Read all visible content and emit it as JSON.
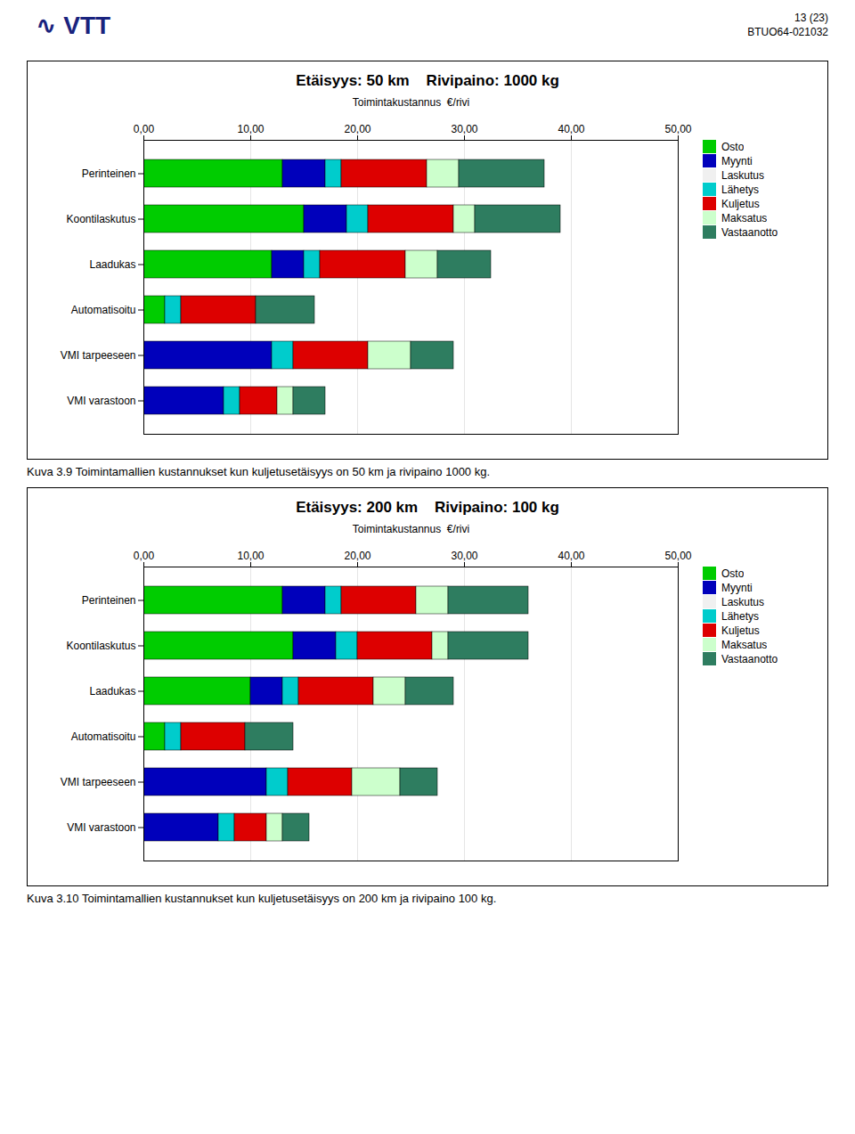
{
  "annotations": [
    "∿ VTT",
    "13 (23)",
    "BTUO64-021032"
  ],
  "chart_data": [
    {
      "type": "bar",
      "orientation": "horizontal",
      "stacked": true,
      "grid": true,
      "legend": "right",
      "title": "Etäisyys: 50 km    Rivipaino: 1000 kg",
      "xlabel": "Toimintakustannus  €/rivi",
      "caption": "Kuva 3.9 Toimintamallien kustannukset kun kuljetusetäisyys on 50 km ja rivipaino 1000 kg.",
      "xlim": [
        0,
        50
      ],
      "xticks": [
        {
          "value": 0,
          "label": "0,00"
        },
        {
          "value": 10,
          "label": "10,00"
        },
        {
          "value": 20,
          "label": "20,00"
        },
        {
          "value": 30,
          "label": "30,00"
        },
        {
          "value": 40,
          "label": "40,00"
        },
        {
          "value": 50,
          "label": "50,00"
        }
      ],
      "categories": [
        "Perinteinen",
        "Koontilaskutus",
        "Laadukas",
        "Automatisoitu",
        "VMI tarpeeseen",
        "VMI varastoon"
      ],
      "series": [
        {
          "name": "Osto",
          "color": "#00CC00",
          "values": [
            13.0,
            15.0,
            12.0,
            2.0,
            0.0,
            0.0
          ]
        },
        {
          "name": "Myynti",
          "color": "#0000BB",
          "values": [
            4.0,
            4.0,
            3.0,
            0.0,
            12.0,
            7.5
          ]
        },
        {
          "name": "Laskutus",
          "color": "#F0F0F0",
          "values": [
            0.0,
            0.0,
            0.0,
            0.0,
            0.0,
            0.0
          ]
        },
        {
          "name": "Lähetys",
          "color": "#00CCCC",
          "values": [
            1.5,
            2.0,
            1.5,
            1.5,
            2.0,
            1.5
          ]
        },
        {
          "name": "Kuljetus",
          "color": "#DD0000",
          "values": [
            8.0,
            8.0,
            8.0,
            7.0,
            7.0,
            3.5
          ]
        },
        {
          "name": "Maksatus",
          "color": "#CCFFCC",
          "values": [
            3.0,
            2.0,
            3.0,
            0.0,
            4.0,
            1.5
          ]
        },
        {
          "name": "Vastaanotto",
          "color": "#2E7D60",
          "values": [
            8.0,
            8.0,
            5.0,
            5.5,
            4.0,
            3.0
          ]
        }
      ]
    },
    {
      "type": "bar",
      "orientation": "horizontal",
      "stacked": true,
      "grid": true,
      "legend": "right",
      "title": "Etäisyys: 200 km    Rivipaino: 100 kg",
      "xlabel": "Toimintakustannus  €/rivi",
      "caption": "Kuva 3.10 Toimintamallien kustannukset kun kuljetusetäisyys on 200 km ja rivipaino 100 kg.",
      "xlim": [
        0,
        50
      ],
      "xticks": [
        {
          "value": 0,
          "label": "0,00"
        },
        {
          "value": 10,
          "label": "10,00"
        },
        {
          "value": 20,
          "label": "20,00"
        },
        {
          "value": 30,
          "label": "30,00"
        },
        {
          "value": 40,
          "label": "40,00"
        },
        {
          "value": 50,
          "label": "50,00"
        }
      ],
      "categories": [
        "Perinteinen",
        "Koontilaskutus",
        "Laadukas",
        "Automatisoitu",
        "VMI tarpeeseen",
        "VMI varastoon"
      ],
      "series": [
        {
          "name": "Osto",
          "color": "#00CC00",
          "values": [
            13.0,
            14.0,
            10.0,
            2.0,
            0.0,
            0.0
          ]
        },
        {
          "name": "Myynti",
          "color": "#0000BB",
          "values": [
            4.0,
            4.0,
            3.0,
            0.0,
            11.5,
            7.0
          ]
        },
        {
          "name": "Laskutus",
          "color": "#F0F0F0",
          "values": [
            0.0,
            0.0,
            0.0,
            0.0,
            0.0,
            0.0
          ]
        },
        {
          "name": "Lähetys",
          "color": "#00CCCC",
          "values": [
            1.5,
            2.0,
            1.5,
            1.5,
            2.0,
            1.5
          ]
        },
        {
          "name": "Kuljetus",
          "color": "#DD0000",
          "values": [
            7.0,
            7.0,
            7.0,
            6.0,
            6.0,
            3.0
          ]
        },
        {
          "name": "Maksatus",
          "color": "#CCFFCC",
          "values": [
            3.0,
            1.5,
            3.0,
            0.0,
            4.5,
            1.5
          ]
        },
        {
          "name": "Vastaanotto",
          "color": "#2E7D60",
          "values": [
            7.5,
            7.5,
            4.5,
            4.5,
            3.5,
            2.5
          ]
        }
      ]
    }
  ]
}
